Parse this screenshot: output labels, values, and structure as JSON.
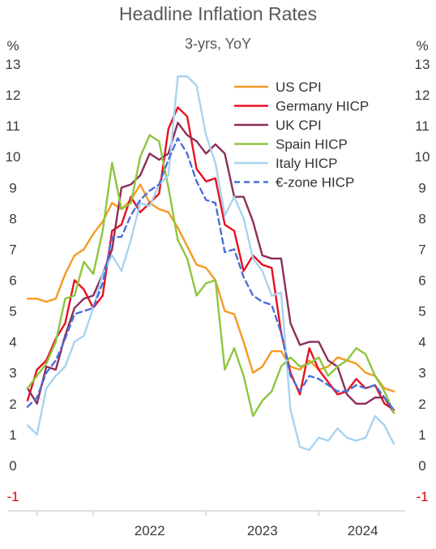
{
  "chart_data": {
    "type": "line",
    "title": "Headline Inflation Rates",
    "subtitle": "3-yrs, YoY",
    "left_unit": "%",
    "right_unit": "%",
    "ylim": [
      -1,
      13
    ],
    "yticks": [
      -1,
      0,
      1,
      2,
      3,
      4,
      5,
      6,
      7,
      8,
      9,
      10,
      11,
      12,
      13
    ],
    "ytick_labels": [
      "-1",
      "0",
      "1",
      "2",
      "3",
      "4",
      "5",
      "6",
      "7",
      "8",
      "9",
      "10",
      "11",
      "12",
      "13"
    ],
    "grid": false,
    "legend_position": "top-right",
    "x_tick_labels": [
      "2022",
      "2023",
      "2024"
    ],
    "x": [
      "2021-06",
      "2021-07",
      "2021-08",
      "2021-09",
      "2021-10",
      "2021-11",
      "2021-12",
      "2022-01",
      "2022-02",
      "2022-03",
      "2022-04",
      "2022-05",
      "2022-06",
      "2022-07",
      "2022-08",
      "2022-09",
      "2022-10",
      "2022-11",
      "2022-12",
      "2023-01",
      "2023-02",
      "2023-03",
      "2023-04",
      "2023-05",
      "2023-06",
      "2023-07",
      "2023-08",
      "2023-09",
      "2023-10",
      "2023-11",
      "2023-12",
      "2024-01",
      "2024-02",
      "2024-03",
      "2024-04",
      "2024-05",
      "2024-06",
      "2024-07",
      "2024-08",
      "2024-09"
    ],
    "series": [
      {
        "name": "US CPI",
        "color": "#f59a23",
        "dash": false,
        "values": [
          5.4,
          5.4,
          5.3,
          5.4,
          6.2,
          6.8,
          7.0,
          7.5,
          7.9,
          8.5,
          8.3,
          8.6,
          9.1,
          8.5,
          8.3,
          8.2,
          7.7,
          7.1,
          6.5,
          6.4,
          6.0,
          5.0,
          4.9,
          4.0,
          3.0,
          3.2,
          3.7,
          3.7,
          3.2,
          3.1,
          3.4,
          3.1,
          3.2,
          3.5,
          3.4,
          3.3,
          3.0,
          2.9,
          2.5,
          2.4
        ]
      },
      {
        "name": "Germany HICP",
        "color": "#e8101f",
        "dash": false,
        "values": [
          2.1,
          3.1,
          3.4,
          4.1,
          4.6,
          6.0,
          5.7,
          5.1,
          5.5,
          7.6,
          7.8,
          8.7,
          8.2,
          8.5,
          8.8,
          10.9,
          11.6,
          11.3,
          9.6,
          9.2,
          9.3,
          7.8,
          7.6,
          6.3,
          6.8,
          6.5,
          6.4,
          4.3,
          3.0,
          2.3,
          3.8,
          3.1,
          2.7,
          2.3,
          2.4,
          2.8,
          2.5,
          2.6,
          2.0,
          1.8
        ]
      },
      {
        "name": "UK CPI",
        "color": "#8c2d5a",
        "dash": false,
        "values": [
          2.5,
          2.0,
          3.2,
          3.1,
          4.2,
          5.1,
          5.4,
          5.5,
          6.2,
          7.0,
          9.0,
          9.1,
          9.4,
          10.1,
          9.9,
          10.1,
          11.1,
          10.7,
          10.5,
          10.1,
          10.4,
          10.1,
          8.7,
          8.7,
          7.9,
          6.8,
          6.7,
          6.7,
          4.6,
          3.9,
          4.0,
          4.0,
          3.4,
          3.2,
          2.3,
          2.0,
          2.0,
          2.2,
          2.2,
          1.7
        ]
      },
      {
        "name": "Spain HICP",
        "color": "#8cc63e",
        "dash": false,
        "values": [
          2.5,
          2.9,
          3.3,
          4.0,
          5.4,
          5.5,
          6.6,
          6.2,
          7.6,
          9.8,
          8.3,
          8.5,
          10.0,
          10.7,
          10.5,
          9.0,
          7.3,
          6.7,
          5.5,
          5.9,
          6.0,
          3.1,
          3.8,
          2.9,
          1.6,
          2.1,
          2.4,
          3.2,
          3.5,
          3.2,
          3.3,
          3.5,
          2.9,
          3.2,
          3.4,
          3.8,
          3.6,
          2.9,
          2.4,
          1.7
        ]
      },
      {
        "name": "Italy HICP",
        "color": "#a8d3f0",
        "dash": false,
        "values": [
          1.3,
          1.0,
          2.5,
          2.9,
          3.2,
          4.0,
          4.2,
          5.1,
          6.2,
          6.8,
          6.3,
          7.3,
          8.5,
          8.4,
          9.1,
          9.4,
          12.6,
          12.6,
          12.3,
          10.7,
          9.8,
          8.1,
          8.7,
          8.0,
          6.7,
          6.3,
          5.5,
          5.6,
          1.8,
          0.6,
          0.5,
          0.9,
          0.8,
          1.2,
          0.9,
          0.8,
          0.9,
          1.6,
          1.3,
          0.7
        ]
      },
      {
        "name": "€-zone HICP",
        "color": "#4a6fd8",
        "dash": true,
        "values": [
          1.9,
          2.2,
          3.0,
          3.4,
          4.1,
          4.9,
          5.0,
          5.1,
          5.9,
          7.4,
          7.4,
          8.1,
          8.6,
          8.9,
          9.1,
          9.9,
          10.6,
          10.1,
          9.2,
          8.6,
          8.5,
          6.9,
          7.0,
          6.1,
          5.5,
          5.3,
          5.2,
          4.3,
          2.9,
          2.4,
          2.9,
          2.8,
          2.6,
          2.4,
          2.4,
          2.6,
          2.5,
          2.6,
          2.2,
          1.8
        ]
      }
    ]
  }
}
